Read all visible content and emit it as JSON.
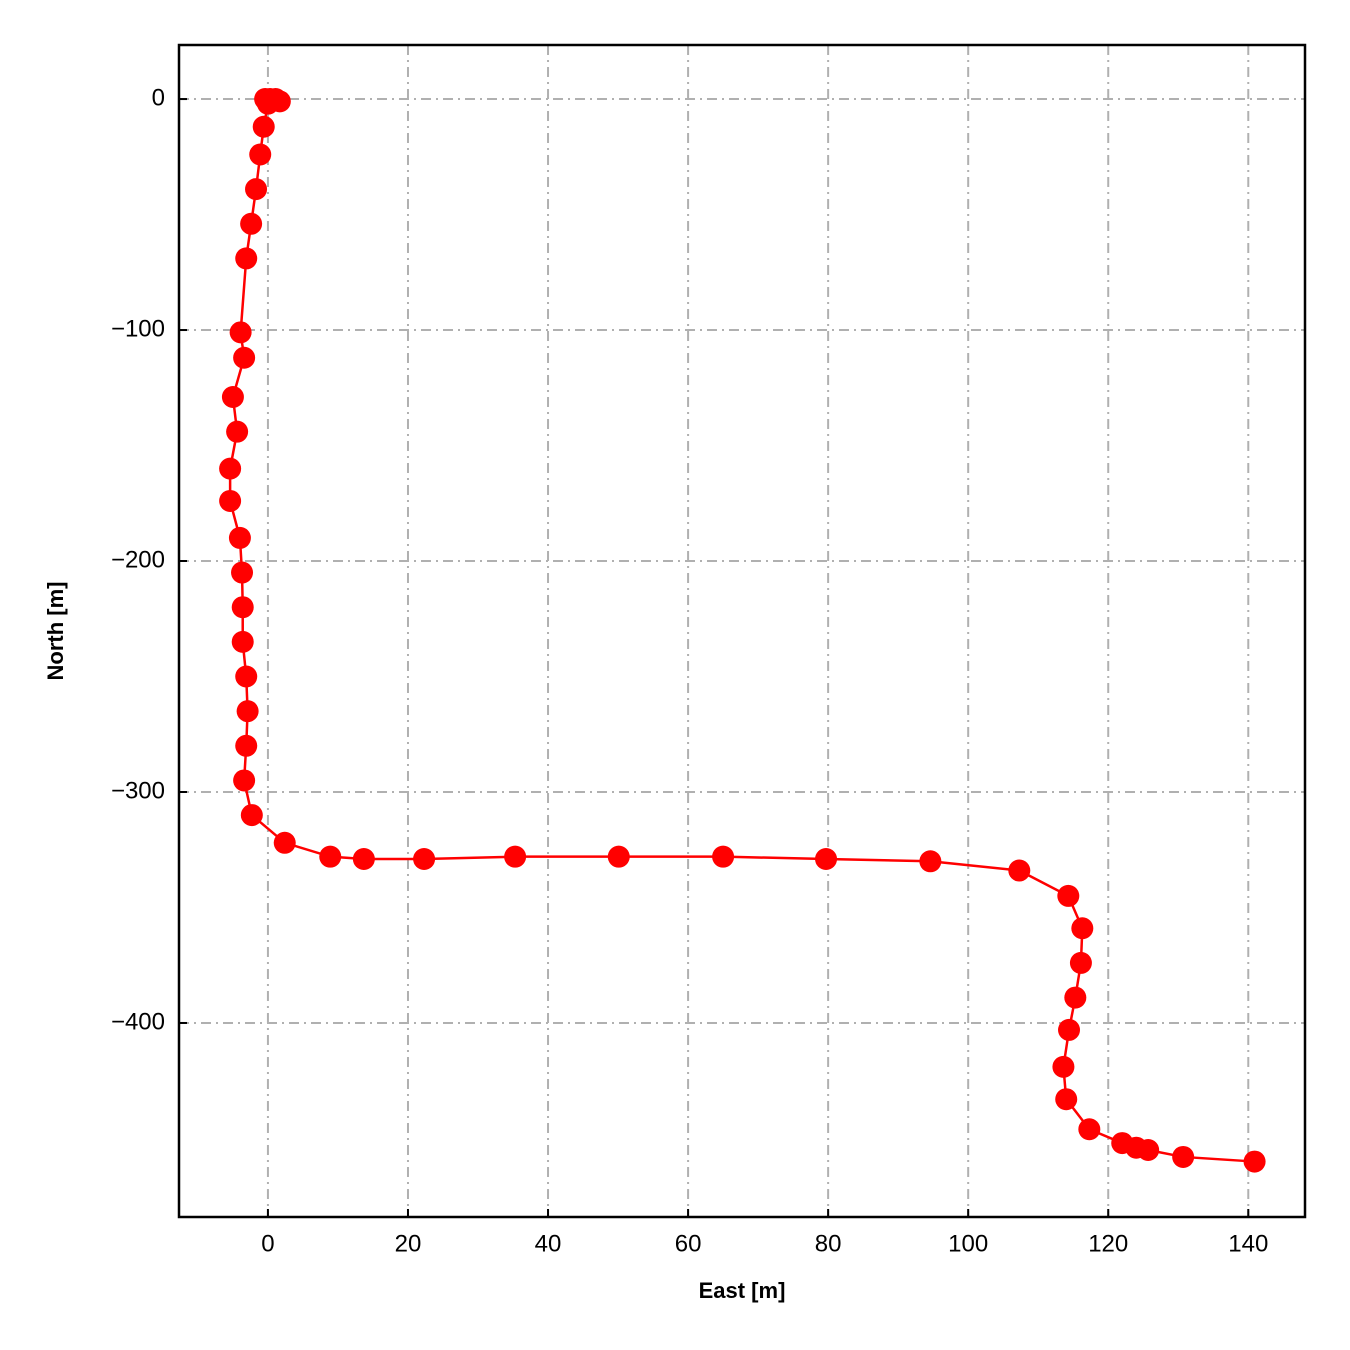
{
  "chart_data": {
    "type": "line",
    "xlabel": "East [m]",
    "ylabel": "North [m]",
    "series": [
      {
        "color": "#ff0000",
        "x": [
          -0.4,
          0.3,
          1.1,
          1.7,
          0,
          -0.6,
          -1.1,
          -1.7,
          -2.4,
          -3.1,
          -3.9,
          -3.4,
          -5,
          -4.4,
          -5.4,
          -5.4,
          -4,
          -3.7,
          -3.6,
          -3.6,
          -3.1,
          -2.9,
          -3.1,
          -3.4,
          -2.3,
          2.4,
          8.9,
          13.7,
          22.3,
          35.3,
          50.1,
          65,
          79.7,
          94.6,
          107.3,
          114.3,
          116.3,
          116.1,
          115.3,
          114.4,
          113.6,
          114,
          117.3,
          122,
          124,
          125.7,
          130.7,
          140.9
        ],
        "y": [
          0,
          0,
          0,
          -1,
          -2,
          -12,
          -24,
          -39,
          -54,
          -69,
          -101,
          -112,
          -129,
          -144,
          -160,
          -174,
          -190,
          -205,
          -220,
          -235,
          -250,
          -265,
          -280,
          -295,
          -310,
          -322,
          -328,
          -329,
          -329,
          -328,
          -328,
          -328,
          -329,
          -330,
          -334,
          -345,
          -359,
          -374,
          -389,
          -403,
          -419,
          -433,
          -446,
          -452,
          -454,
          -455,
          -458,
          -460
        ]
      }
    ],
    "xlim": [
      -12.7,
      148.1
    ],
    "ylim": [
      -484,
      23.4
    ],
    "xticks": [
      0,
      20,
      40,
      60,
      80,
      100,
      120,
      140
    ],
    "yticks": [
      0,
      {
        "value": -100,
        "label": "−100"
      },
      {
        "value": -200,
        "label": "−200"
      },
      {
        "value": -300,
        "label": "−300"
      },
      {
        "value": -400,
        "label": "−400"
      }
    ],
    "grid": true
  }
}
